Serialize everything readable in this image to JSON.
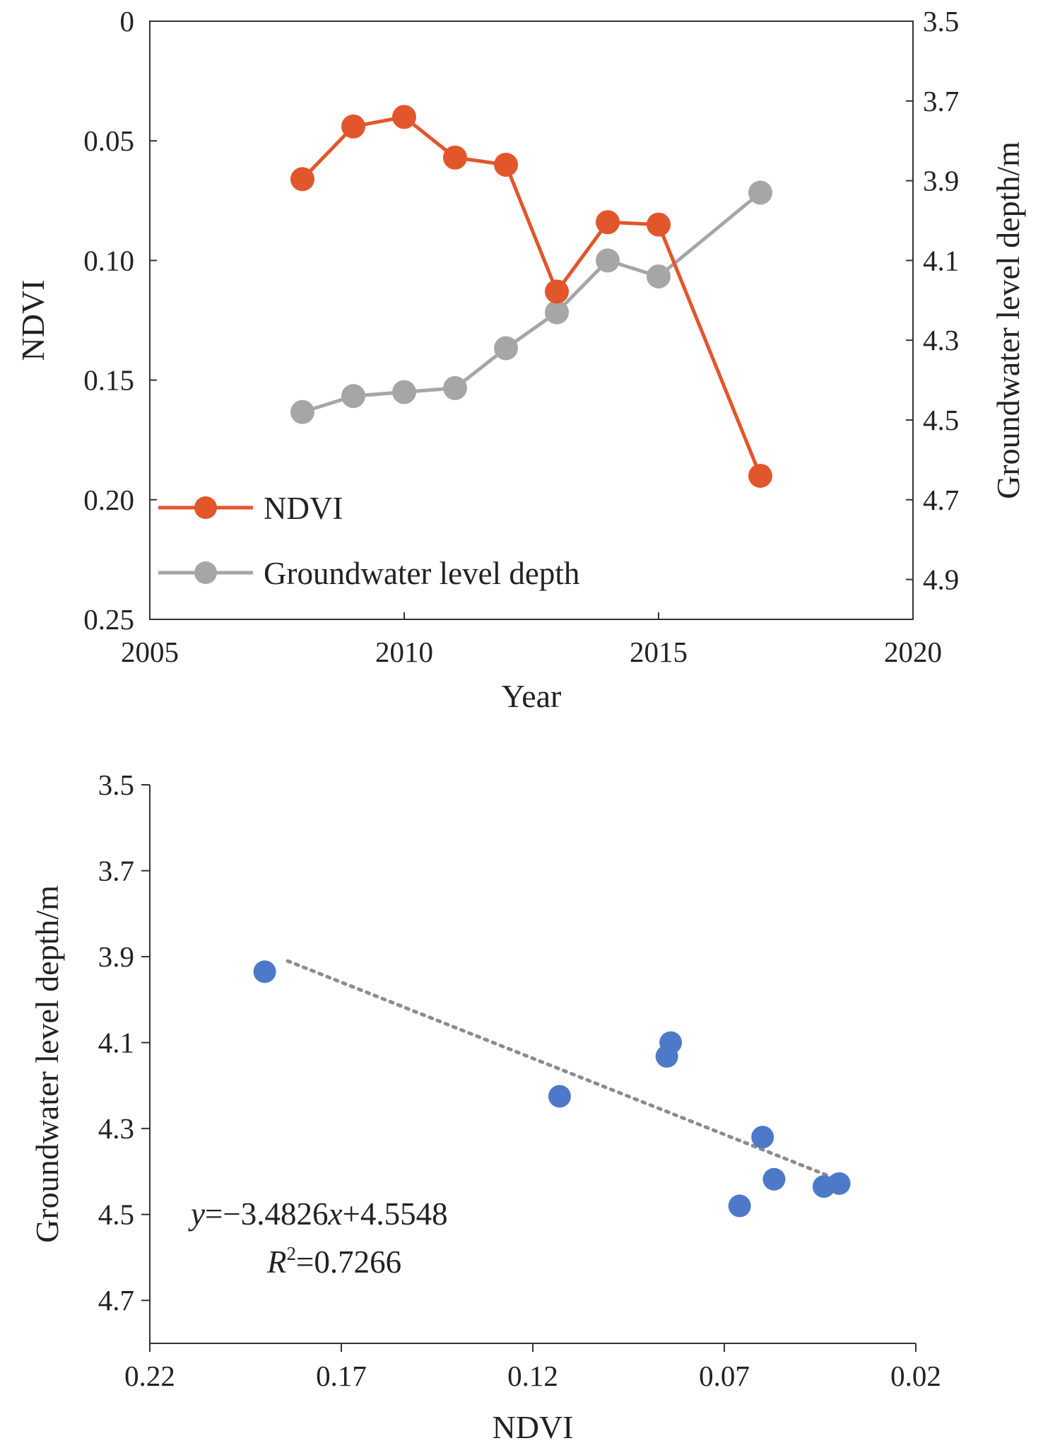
{
  "chart_data": [
    {
      "type": "line",
      "xlabel": "Year",
      "ylabel_left": "NDVI",
      "ylabel_right": "Groundwater level depth/m",
      "xlim": [
        2005,
        2020
      ],
      "x_ticks": [
        "2005",
        "2010",
        "2015",
        "2020"
      ],
      "ylim_left": [
        0,
        0.25
      ],
      "y_left_inverted": true,
      "y_left_ticks": [
        "0",
        "0.05",
        "0.10",
        "0.15",
        "0.20",
        "0.25"
      ],
      "ylim_right": [
        3.5,
        5.0
      ],
      "y_right_inverted": true,
      "y_right_ticks": [
        "3.5",
        "3.7",
        "3.9",
        "4.1",
        "4.3",
        "4.5",
        "4.7",
        "4.9"
      ],
      "grid": false,
      "legend_position": "bottom-left",
      "series": [
        {
          "name": "NDVI",
          "axis": "left",
          "color": "#e2562b",
          "x": [
            2008,
            2009,
            2010,
            2011,
            2012,
            2013,
            2014,
            2015,
            2017
          ],
          "y": [
            0.066,
            0.044,
            0.04,
            0.057,
            0.06,
            0.113,
            0.084,
            0.085,
            0.19
          ]
        },
        {
          "name": "Groundwater level depth",
          "axis": "right",
          "color": "#a6a6a6",
          "x": [
            2008,
            2009,
            2010,
            2011,
            2012,
            2013,
            2014,
            2015,
            2017
          ],
          "y": [
            4.48,
            4.44,
            4.43,
            4.42,
            4.32,
            4.23,
            4.1,
            4.14,
            3.93
          ]
        }
      ]
    },
    {
      "type": "scatter",
      "xlabel": "NDVI",
      "ylabel": "Groundwater level depth/m",
      "xlim": [
        0.22,
        0.02
      ],
      "x_inverted": true,
      "x_ticks": [
        "0.22",
        "0.17",
        "0.12",
        "0.07",
        "0.02"
      ],
      "ylim": [
        3.5,
        4.8
      ],
      "y_inverted": true,
      "y_ticks": [
        "3.5",
        "3.7",
        "3.9",
        "4.1",
        "4.3",
        "4.5",
        "4.7"
      ],
      "grid": false,
      "point_color": "#4e79c9",
      "points": [
        {
          "x": 0.19,
          "y": 3.935
        },
        {
          "x": 0.113,
          "y": 4.225
        },
        {
          "x": 0.084,
          "y": 4.1
        },
        {
          "x": 0.085,
          "y": 4.132
        },
        {
          "x": 0.066,
          "y": 4.48
        },
        {
          "x": 0.06,
          "y": 4.32
        },
        {
          "x": 0.057,
          "y": 4.418
        },
        {
          "x": 0.044,
          "y": 4.435
        },
        {
          "x": 0.04,
          "y": 4.428
        }
      ],
      "trendline": {
        "style": "dotted",
        "color": "#8c8c8c",
        "x_range": [
          0.184,
          0.04
        ],
        "y_range": [
          3.91,
          4.42
        ]
      },
      "equation": {
        "y_italic": "y",
        "mid": "=−3.4826",
        "x_italic": "x",
        "tail": "+4.5548",
        "r_italic": "R",
        "r_sup": "2",
        "r_value": "=0.7266"
      }
    }
  ]
}
